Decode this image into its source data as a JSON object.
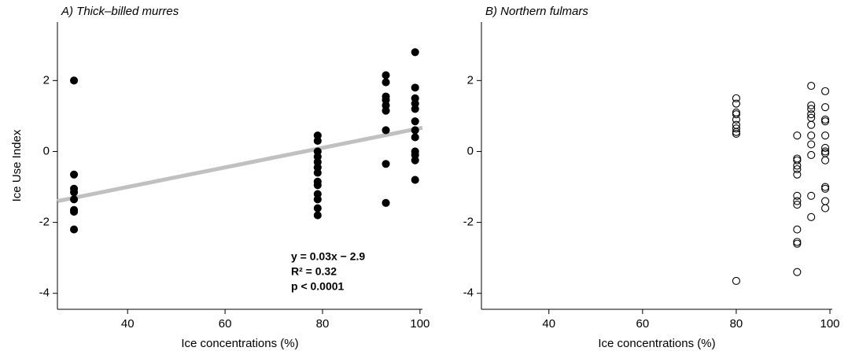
{
  "chart_data": [
    {
      "type": "scatter",
      "title": "A) Thick–billed murres",
      "x_label": "Ice concentrations (%)",
      "y_label": "Ice Use Index",
      "xlim": [
        25.6,
        100.5
      ],
      "ylim": [
        -4.45,
        3.65
      ],
      "xticks": [
        40,
        60,
        80,
        100
      ],
      "yticks": [
        2,
        0,
        -2,
        -4
      ],
      "color": "#000000",
      "marker_fill": true,
      "x": [
        29,
        29,
        29,
        29,
        29,
        29,
        29,
        29,
        79,
        79,
        79,
        79,
        79,
        79,
        79,
        79,
        79,
        79,
        79,
        79,
        79,
        93,
        93,
        93,
        93,
        93,
        93,
        93,
        93,
        93,
        99,
        99,
        99,
        99,
        99,
        99,
        99,
        99,
        99,
        99,
        99,
        99
      ],
      "values": [
        2.0,
        -0.65,
        -1.05,
        -1.15,
        -1.35,
        -1.65,
        -1.7,
        -2.2,
        0.45,
        0.3,
        0.0,
        -0.15,
        -0.3,
        -0.45,
        -0.6,
        -0.85,
        -0.95,
        -1.2,
        -1.35,
        -1.6,
        -1.8,
        2.15,
        1.95,
        1.55,
        1.45,
        1.3,
        1.15,
        0.6,
        -0.35,
        -1.45,
        2.8,
        1.8,
        1.5,
        1.35,
        1.2,
        0.85,
        0.6,
        0.4,
        0.0,
        -0.1,
        -0.25,
        -0.8
      ],
      "fit_line": {
        "x": [
          25.6,
          100.5
        ],
        "values": [
          -1.4,
          0.67
        ],
        "color": "#c0c0c0"
      },
      "annotations": [
        "y = 0.03x − 2.9",
        "R² = 0.32",
        "p < 0.0001"
      ]
    },
    {
      "type": "scatter",
      "title": "B) Northern fulmars",
      "x_label": "Ice concentrations (%)",
      "xlim": [
        25.6,
        100.5
      ],
      "ylim": [
        -4.45,
        3.65
      ],
      "xticks": [
        40,
        60,
        80,
        100
      ],
      "yticks": [
        2,
        0,
        -2,
        -4
      ],
      "color": "#000000",
      "marker_fill": false,
      "x": [
        80,
        80,
        80,
        80,
        80,
        80,
        80,
        80,
        80,
        80,
        93,
        93,
        93,
        93,
        93,
        93,
        93,
        93,
        93,
        93,
        93,
        93,
        93,
        96,
        96,
        96,
        96,
        96,
        96,
        96,
        96,
        96,
        96,
        96,
        99,
        99,
        99,
        99,
        99,
        99,
        99,
        99,
        99,
        99,
        99,
        99,
        99
      ],
      "values": [
        1.5,
        1.35,
        1.1,
        1.05,
        0.9,
        0.75,
        0.65,
        0.55,
        0.5,
        -3.65,
        0.45,
        -0.2,
        -0.25,
        -0.4,
        -0.5,
        -0.65,
        -1.25,
        -1.4,
        -1.5,
        -2.2,
        -2.55,
        -2.6,
        -3.4,
        1.85,
        1.3,
        1.2,
        1.05,
        0.95,
        0.75,
        0.45,
        0.2,
        -0.1,
        -1.25,
        -1.85,
        1.7,
        1.25,
        0.9,
        0.85,
        0.45,
        0.1,
        0.0,
        -0.05,
        -0.25,
        -1.0,
        -1.05,
        -1.4,
        -1.6
      ]
    }
  ]
}
